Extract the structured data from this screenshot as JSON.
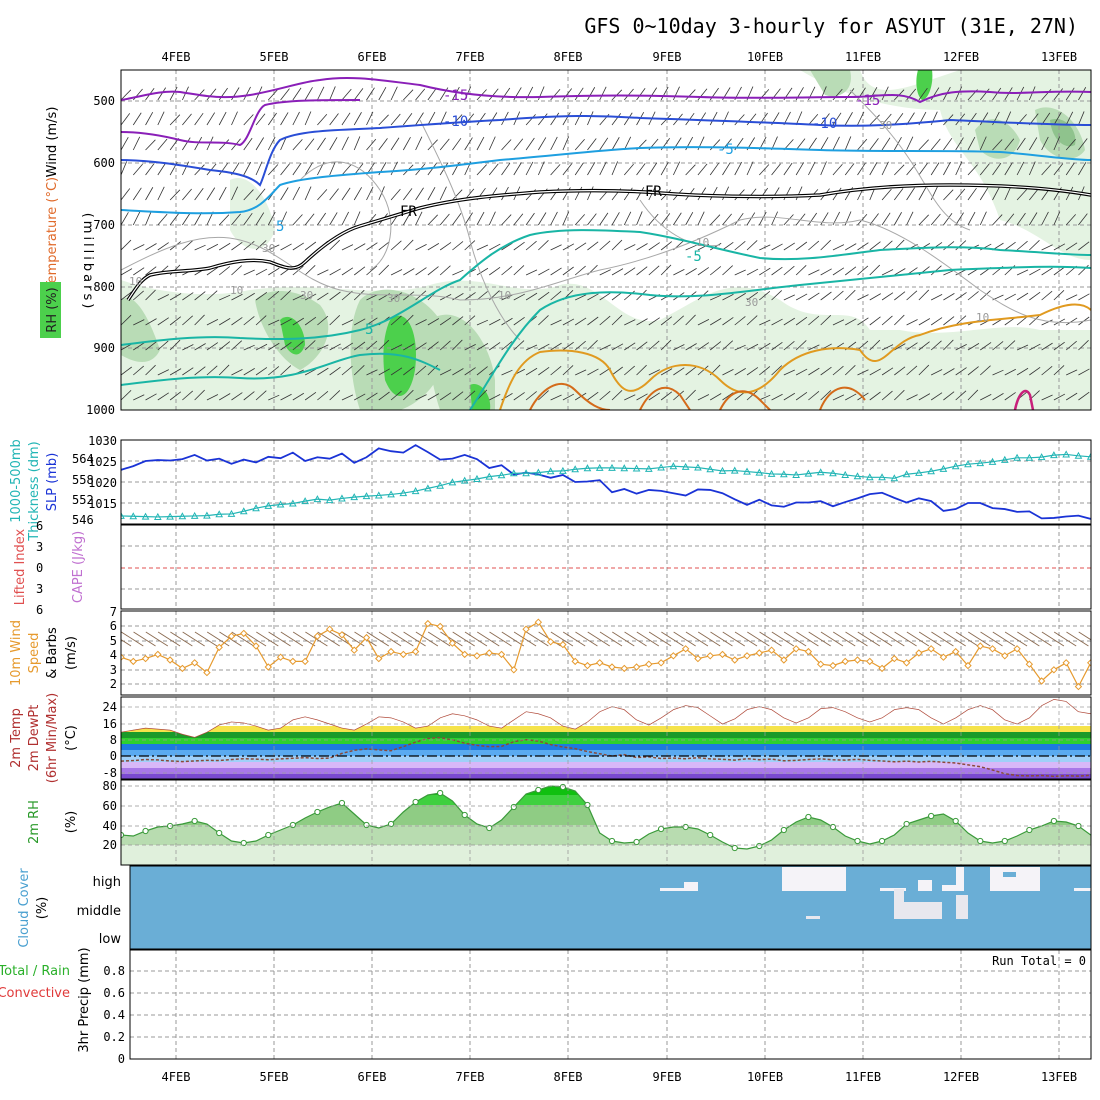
{
  "title": "GFS 0~10day 3-hourly for ASYUT (31E, 27N)",
  "date_labels": [
    "4FEB",
    "5FEB",
    "6FEB",
    "7FEB",
    "8FEB",
    "9FEB",
    "10FEB",
    "11FEB",
    "12FEB",
    "13FEB"
  ],
  "run_total": "Run Total = 0",
  "colors": {
    "rh_light": "#e4f3e2",
    "rh_mid": "#b9dcb6",
    "rh_dark": "#8fc38d",
    "rh_green": "#4cd04c",
    "slp": "#1a33d6",
    "thickness": "#22b5b5",
    "wind10m": "#e69a2e",
    "cloud": "#6aaed6",
    "cloud_white": "#f5f3f8",
    "temp_minus15": "#8a1fb8",
    "temp_minus10": "#2a4ed6",
    "temp_minus5": "#1e9fe0",
    "temp_5": "#19b5a5",
    "temp_10": "#e09a20"
  },
  "panels": [
    {
      "id": "sounding",
      "labels": [
        "Wind (m/s)",
        "Temperature (°C)",
        "RH (%)"
      ],
      "ylabel": "(millibars)"
    },
    {
      "id": "slp",
      "labels": [
        "1000-500mb",
        "Thickness (dm)",
        "SLP (mb)"
      ]
    },
    {
      "id": "cape",
      "labels": [
        "Lifted Index",
        "CAPE (J/kg)"
      ]
    },
    {
      "id": "wind",
      "labels": [
        "10m Wind",
        "Speed",
        "& Barbs",
        "(m/s)"
      ]
    },
    {
      "id": "temp",
      "labels": [
        "2m Temp",
        "2m DewPt",
        "(6hr Min/Max)",
        "(°C)"
      ]
    },
    {
      "id": "rh",
      "labels": [
        "2m RH",
        "(%)"
      ]
    },
    {
      "id": "cloud",
      "labels": [
        "Cloud Cover",
        "(%)"
      ]
    },
    {
      "id": "precip",
      "labels": [
        "Total / Rain",
        "Convective",
        "3hr Precip (mm)"
      ]
    }
  ],
  "sounding_axis": {
    "ticks": [
      "500",
      "600",
      "700",
      "800",
      "900",
      "1000"
    ],
    "range": [
      1000,
      450
    ]
  },
  "contour_labels": [
    "-15",
    "-10",
    "-5",
    "FR",
    "5",
    "FR",
    "-5",
    "-10",
    "-15",
    "5",
    "10",
    "30",
    "30",
    "10",
    "30",
    "10",
    "30",
    "10",
    "5",
    "30",
    "10",
    "30"
  ],
  "slp_axis": {
    "left_ticks": [
      "564",
      "558",
      "552",
      "546"
    ],
    "right_ticks": [
      "1030",
      "1025",
      "1020",
      "1015"
    ]
  },
  "cape_axis": {
    "ticks": [
      "6",
      "3",
      "0",
      "3",
      "6"
    ]
  },
  "wind_axis": {
    "ticks": [
      "7",
      "6",
      "5",
      "4",
      "3",
      "2"
    ]
  },
  "temp_axis": {
    "ticks": [
      "24",
      "16",
      "8",
      "0",
      "-8"
    ]
  },
  "rh_axis": {
    "ticks": [
      "80",
      "60",
      "40",
      "20"
    ]
  },
  "cloud_axis": {
    "ticks": [
      "high",
      "middle",
      "low"
    ]
  },
  "precip_axis": {
    "ticks": [
      "0.8",
      "0.6",
      "0.4",
      "0.2",
      "0"
    ]
  },
  "chart_data": {
    "type": "line",
    "time_range_days": [
      0,
      10
    ],
    "time_axis_labels": [
      "4FEB",
      "5FEB",
      "6FEB",
      "7FEB",
      "8FEB",
      "9FEB",
      "10FEB",
      "11FEB",
      "12FEB",
      "13FEB"
    ],
    "slp_mb": {
      "ylim": [
        1012,
        1030
      ],
      "values": [
        1023.6,
        1024.4,
        1025.5,
        1025.7,
        1025.6,
        1025.9,
        1026.8,
        1025.6,
        1026,
        1024.9,
        1025.8,
        1025.2,
        1026.4,
        1026.1,
        1027.3,
        1025.5,
        1026.3,
        1026,
        1027.1,
        1025.1,
        1026.3,
        1028.2,
        1027.6,
        1027.3,
        1028.9,
        1027.4,
        1025.8,
        1026,
        1026.8,
        1025.9,
        1024,
        1024.6,
        1022.6,
        1023,
        1022.6,
        1021.9,
        1022.5,
        1021,
        1021.1,
        1021.4,
        1018.8,
        1019.5,
        1018.5,
        1019.3,
        1019.1,
        1018.6,
        1018.1,
        1019.4,
        1019.3,
        1018.6,
        1017.3,
        1016.1,
        1017.2,
        1016,
        1015.7,
        1016.6,
        1016.6,
        1016.9,
        1015.8,
        1016.7,
        1017.5,
        1018.4,
        1018.7,
        1017.6,
        1016.6,
        1017.5,
        1016.9,
        1014.8,
        1015.2,
        1016.5,
        1016.5,
        1015.4,
        1015.2,
        1014.6,
        1014.7,
        1013.2,
        1013.3,
        1013.6,
        1013.8,
        1013.1,
        1014.2
      ]
    },
    "thickness_dm": {
      "ylim": [
        544,
        569
      ],
      "values": [
        546.4,
        546.3,
        546.2,
        546.1,
        546.2,
        546.3,
        546.4,
        546.5,
        546.9,
        547,
        547.8,
        548.7,
        549.4,
        549.8,
        550.1,
        550.8,
        551.4,
        551.1,
        551.6,
        552,
        552.3,
        552.5,
        552.8,
        553.2,
        553.8,
        554.6,
        555.4,
        556.4,
        556.9,
        557.4,
        558.1,
        558.5,
        559.1,
        559.1,
        559.3,
        559.7,
        559.8,
        560.3,
        560.6,
        560.7,
        560.7,
        560.6,
        560.5,
        560.4,
        560.8,
        561.2,
        561,
        560.8,
        560.3,
        559.8,
        559.9,
        559.6,
        559.3,
        558.9,
        558.8,
        558.6,
        559,
        559.4,
        559.1,
        558.6,
        558.2,
        557.9,
        557.9,
        557.6,
        558.8,
        559.2,
        559.7,
        560.4,
        561.2,
        561.8,
        562.1,
        562.5,
        563.1,
        563.7,
        563.7,
        563.9,
        564.5,
        564.7,
        564.3,
        564,
        563.4
      ]
    },
    "wind10m_ms": {
      "ylim": [
        1,
        7
      ],
      "values": [
        3.7,
        3.4,
        3.6,
        3.9,
        3.5,
        2.9,
        3.3,
        2.6,
        4.4,
        5.2,
        5.4,
        4.5,
        3,
        3.7,
        3.4,
        3.4,
        5.2,
        5.7,
        5.3,
        4.2,
        5.1,
        3.6,
        4.1,
        3.9,
        4.1,
        6.1,
        5.9,
        4.7,
        3.9,
        3.8,
        4,
        3.9,
        2.8,
        5.7,
        6.2,
        4.8,
        4.6,
        3.4,
        3.1,
        3.3,
        3,
        2.9,
        3,
        3.2,
        3.3,
        3.8,
        4.3,
        3.6,
        3.8,
        3.9,
        3.5,
        3.8,
        4,
        4.2,
        3.5,
        4.3,
        4.1,
        3.2,
        3.1,
        3.4,
        3.5,
        3.4,
        2.9,
        3.6,
        3.3,
        4,
        4.3,
        3.7,
        4.1,
        3.1,
        4.5,
        4.3,
        3.8,
        4.3,
        3.2,
        2,
        2.8,
        3.3,
        1.6,
        3.3,
        3.5
      ]
    },
    "temp2m_c": {
      "ylim": [
        -12,
        28
      ],
      "values": [
        11,
        12,
        13,
        12.5,
        12,
        10,
        8.5,
        11,
        14.5,
        16,
        15.5,
        14,
        12,
        13,
        17,
        18.5,
        17,
        15,
        13,
        12,
        15,
        18.5,
        18,
        16,
        13,
        14,
        18,
        20,
        19,
        17,
        14,
        13,
        17,
        21,
        20,
        18,
        14,
        12.5,
        16,
        21,
        23.5,
        22,
        17,
        14.5,
        18,
        22,
        24,
        23,
        19,
        15,
        17.5,
        22,
        23.5,
        22,
        18,
        15.5,
        18,
        22.5,
        23,
        21,
        18,
        16,
        18,
        22,
        23,
        22,
        18,
        15,
        18,
        22,
        24,
        22,
        17,
        15,
        18,
        24,
        27,
        26,
        21,
        20,
        19
      ]
    },
    "dewpt2m_c": {
      "ylim": [
        -12,
        28
      ],
      "values": [
        -3.3,
        -3,
        -2.5,
        -2.7,
        -3.2,
        -3.5,
        -3.2,
        -2.9,
        -3,
        -2.5,
        -2.1,
        -2.3,
        -2.6,
        -2.2,
        -1.9,
        -1.6,
        -2,
        -1.8,
        0.5,
        2,
        2.7,
        2.2,
        1.8,
        3.8,
        6,
        7.8,
        8.2,
        7.1,
        5.5,
        4.4,
        3.8,
        3.9,
        6.2,
        7.2,
        6.5,
        4.8,
        3.6,
        2.8,
        1.4,
        0.3,
        -0.8,
        -0.1,
        -1.5,
        -1.2,
        -2,
        -1.8,
        -2.1,
        -1.6,
        -2.2,
        -2.4,
        -2.8,
        -2.1,
        -2.6,
        -2.3,
        -3.1,
        -2.9,
        -2.5,
        -2.2,
        -2.6,
        -2.8,
        -2.4,
        -2.9,
        -3.2,
        -3.6,
        -3.3,
        -3.7,
        -3.4,
        -3.8,
        -4.2,
        -5.1,
        -6,
        -7.6,
        -9.4,
        -10.3,
        -10.5,
        -10.3,
        -10.7,
        -10.4,
        -10.6,
        -10.2,
        -10.7
      ]
    },
    "rh2m_pct": {
      "ylim": [
        0,
        85
      ],
      "values": [
        30,
        29,
        34,
        38,
        39,
        41,
        44,
        41,
        32,
        24,
        22,
        24,
        30,
        35,
        40,
        47,
        53,
        58,
        62,
        51,
        40,
        37,
        41,
        53,
        63,
        70,
        72,
        64,
        50,
        41,
        37,
        45,
        58,
        71,
        75,
        79,
        78,
        74,
        60,
        32,
        24,
        22,
        23,
        31,
        36,
        38,
        38,
        36,
        30,
        23,
        17,
        16,
        19,
        25,
        35,
        43,
        48,
        45,
        38,
        29,
        24,
        21,
        24,
        30,
        41,
        45,
        49,
        51,
        44,
        32,
        24,
        22,
        24,
        29,
        35,
        39,
        44,
        43,
        39,
        30,
        24
      ]
    },
    "precip_mm": {
      "ylim": [
        0,
        0.9
      ],
      "run_total": 0
    }
  }
}
